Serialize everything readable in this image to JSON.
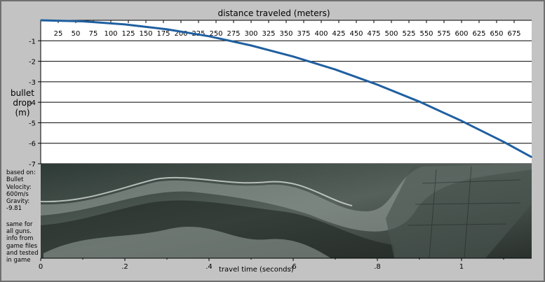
{
  "page": {
    "top_axis_title": "distance traveled (meters)",
    "y_axis_title": "bullet drop (m)",
    "note": {
      "based_on": "based on: Bullet Velocity: 600m/s Gravity: -9.81",
      "source": "same for all guns. info from game files and tested in game"
    }
  },
  "chart_data": {
    "type": "line",
    "title": "",
    "top_axis": {
      "label": "distance traveled (meters)",
      "tick_labels": [
        "25",
        "50",
        "75",
        "100",
        "125",
        "150",
        "175",
        "200",
        "225",
        "250",
        "275",
        "300",
        "325",
        "350",
        "375",
        "400",
        "425",
        "450",
        "475",
        "500",
        "525",
        "550",
        "575",
        "600",
        "625",
        "650",
        "675"
      ],
      "range": [
        0,
        700
      ]
    },
    "y_axis": {
      "label": "bullet drop (m)",
      "range": [
        -7,
        0
      ],
      "tick_labels": [
        "-1",
        "-2",
        "-3",
        "-4",
        "-5",
        "-6",
        "-7"
      ],
      "grid": true
    },
    "x_axis": {
      "label": "travel time (seconds)",
      "range": [
        0,
        1.1667
      ],
      "tick_labels": [
        {
          "label": "0",
          "value": 0
        },
        {
          "label": ".2",
          "value": 0.2
        },
        {
          "label": ".4",
          "value": 0.4
        },
        {
          "label": ".6",
          "value": 0.6
        },
        {
          "label": ".8",
          "value": 0.8
        },
        {
          "label": "1",
          "value": 1.0
        }
      ]
    },
    "series": [
      {
        "color": "#1f5fa0",
        "x": [
          0,
          0.1,
          0.2,
          0.3,
          0.4,
          0.5,
          0.6,
          0.7,
          0.8,
          0.9,
          1.0,
          1.1,
          1.1667
        ],
        "y": [
          0,
          -0.05,
          -0.2,
          -0.44,
          -0.78,
          -1.23,
          -1.77,
          -2.4,
          -3.14,
          -3.97,
          -4.91,
          -5.93,
          -6.68
        ]
      }
    ],
    "colors": {
      "plot_bg": "#ffffff",
      "frame_bg": "#c3c3c3",
      "curve": "#1f5fa0",
      "grid": "#000000"
    }
  }
}
